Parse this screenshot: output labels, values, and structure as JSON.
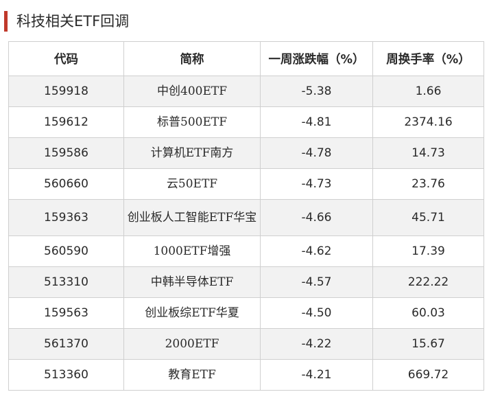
{
  "header": {
    "title": "科技相关ETF回调",
    "accent_color": "#c0392b"
  },
  "table": {
    "columns": [
      "代码",
      "简称",
      "一周涨跌幅（%）",
      "周换手率（%）"
    ],
    "rows": [
      {
        "code": "159918",
        "name": "中创400ETF",
        "weekly_change": "-5.38",
        "weekly_turnover": "1.66"
      },
      {
        "code": "159612",
        "name": "标普500ETF",
        "weekly_change": "-4.81",
        "weekly_turnover": "2374.16"
      },
      {
        "code": "159586",
        "name": "计算机ETF南方",
        "weekly_change": "-4.78",
        "weekly_turnover": "14.73"
      },
      {
        "code": "560660",
        "name": "云50ETF",
        "weekly_change": "-4.73",
        "weekly_turnover": "23.76"
      },
      {
        "code": "159363",
        "name": "创业板人工智能ETF华宝",
        "weekly_change": "-4.66",
        "weekly_turnover": "45.71"
      },
      {
        "code": "560590",
        "name": "1000ETF增强",
        "weekly_change": "-4.62",
        "weekly_turnover": "17.39"
      },
      {
        "code": "513310",
        "name": "中韩半导体ETF",
        "weekly_change": "-4.57",
        "weekly_turnover": "222.22"
      },
      {
        "code": "159563",
        "name": "创业板综ETF华夏",
        "weekly_change": "-4.50",
        "weekly_turnover": "60.03"
      },
      {
        "code": "561370",
        "name": "2000ETF",
        "weekly_change": "-4.22",
        "weekly_turnover": "15.67"
      },
      {
        "code": "513360",
        "name": "教育ETF",
        "weekly_change": "-4.21",
        "weekly_turnover": "669.72"
      }
    ]
  }
}
